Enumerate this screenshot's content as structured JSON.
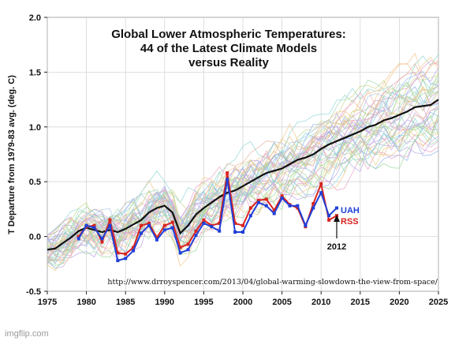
{
  "chart_data": {
    "type": "line",
    "title_lines": [
      "Global Lower Atmospheric Temperatures:",
      "44 of the Latest Climate Models",
      "versus Reality"
    ],
    "ylabel": "T Departure from 1979-83 avg. (deg. C)",
    "xlabel": "",
    "xlim": [
      1975,
      2025
    ],
    "ylim": [
      -0.5,
      2.0
    ],
    "x_ticks": [
      "1975",
      "1980",
      "1985",
      "1990",
      "1995",
      "2000",
      "2005",
      "2010",
      "2015",
      "2020",
      "2025"
    ],
    "y_ticks": [
      "-0.5",
      "0.0",
      "0.5",
      "1.0",
      "1.5",
      "2.0"
    ],
    "grid": true,
    "legend_placement": "right of series end",
    "annotation_year": "2012",
    "source_url": "http://www.drroyspencer.com/2013/04/global-warming-slowdown-the-view-from-space/",
    "colors": {
      "uah": "#1f3fd8",
      "rss": "#d8231f",
      "mean": "#111111"
    },
    "mean_series": {
      "x": [
        1975,
        1976,
        1977,
        1978,
        1979,
        1980,
        1981,
        1982,
        1983,
        1984,
        1985,
        1986,
        1987,
        1988,
        1989,
        1990,
        1991,
        1992,
        1993,
        1994,
        1995,
        1996,
        1997,
        1998,
        1999,
        2000,
        2001,
        2002,
        2003,
        2004,
        2005,
        2006,
        2007,
        2008,
        2009,
        2010,
        2011,
        2012,
        2013,
        2014,
        2015,
        2016,
        2017,
        2018,
        2019,
        2020,
        2021,
        2022,
        2023,
        2024,
        2025
      ],
      "values": [
        -0.12,
        -0.11,
        -0.06,
        -0.01,
        0.05,
        0.08,
        0.06,
        0.04,
        0.06,
        0.04,
        0.07,
        0.11,
        0.15,
        0.22,
        0.26,
        0.28,
        0.22,
        0.03,
        0.1,
        0.2,
        0.26,
        0.31,
        0.36,
        0.4,
        0.42,
        0.46,
        0.5,
        0.54,
        0.58,
        0.6,
        0.62,
        0.66,
        0.7,
        0.72,
        0.75,
        0.8,
        0.84,
        0.87,
        0.9,
        0.93,
        0.96,
        1.0,
        1.02,
        1.06,
        1.08,
        1.11,
        1.14,
        1.18,
        1.19,
        1.2,
        1.25
      ]
    },
    "series": [
      {
        "name": "UAH",
        "x": [
          1979,
          1980,
          1981,
          1982,
          1983,
          1984,
          1985,
          1986,
          1987,
          1988,
          1989,
          1990,
          1991,
          1992,
          1993,
          1994,
          1995,
          1996,
          1997,
          1998,
          1999,
          2000,
          2001,
          2002,
          2003,
          2004,
          2005,
          2006,
          2007,
          2008,
          2009,
          2010,
          2011,
          2012
        ],
        "values": [
          -0.02,
          0.1,
          0.08,
          -0.02,
          0.1,
          -0.22,
          -0.2,
          -0.13,
          0.03,
          0.1,
          -0.03,
          0.06,
          0.08,
          -0.15,
          -0.12,
          0.01,
          0.12,
          0.09,
          0.05,
          0.52,
          0.04,
          0.04,
          0.19,
          0.31,
          0.28,
          0.21,
          0.35,
          0.28,
          0.28,
          0.1,
          0.26,
          0.4,
          0.19,
          0.26
        ]
      },
      {
        "name": "RSS",
        "x": [
          1979,
          1980,
          1981,
          1982,
          1983,
          1984,
          1985,
          1986,
          1987,
          1988,
          1989,
          1990,
          1991,
          1992,
          1993,
          1994,
          1995,
          1996,
          1997,
          1998,
          1999,
          2000,
          2001,
          2002,
          2003,
          2004,
          2005,
          2006,
          2007,
          2008,
          2009,
          2010,
          2011,
          2012
        ],
        "values": [
          0.0,
          0.09,
          0.1,
          -0.05,
          0.15,
          -0.15,
          -0.16,
          -0.1,
          0.1,
          0.12,
          -0.01,
          0.1,
          0.13,
          -0.1,
          -0.07,
          0.05,
          0.15,
          0.1,
          0.12,
          0.58,
          0.12,
          0.1,
          0.26,
          0.33,
          0.34,
          0.24,
          0.37,
          0.29,
          0.26,
          0.09,
          0.3,
          0.48,
          0.15,
          0.19
        ]
      }
    ]
  },
  "watermark": "imgflip.com"
}
